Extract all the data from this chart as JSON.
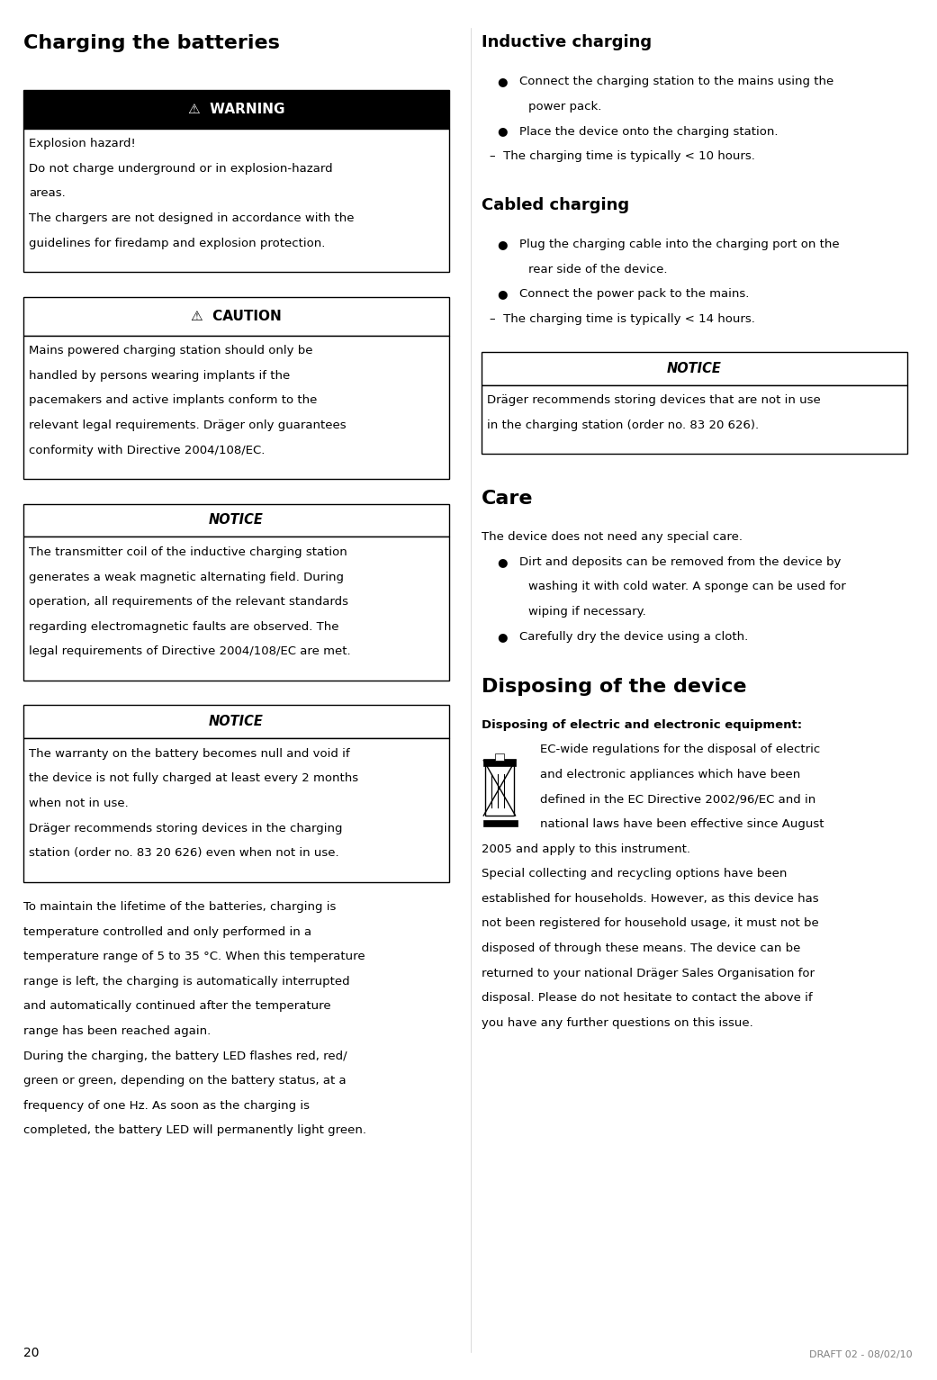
{
  "page_number": "20",
  "bg_color": "#ffffff",
  "sections": {
    "left_title": "Charging the batteries",
    "right_top_title": "Inductive charging",
    "right_cabled_title": "Cabled charging",
    "care_title": "Care",
    "disposing_title": "Disposing of the device",
    "disposing_subtitle": "Disposing of electric and electronic equipment:"
  },
  "warning_box": {
    "header": "⚠  WARNING",
    "body_lines": [
      "Explosion hazard!",
      "Do not charge underground or in explosion-hazard",
      "areas.",
      "The chargers are not designed in accordance with the",
      "guidelines for firedamp and explosion protection."
    ]
  },
  "caution_box": {
    "header": "⚠  CAUTION",
    "body_lines": [
      "Mains powered charging station should only be",
      "handled by persons wearing implants if the",
      "pacemakers and active implants conform to the",
      "relevant legal requirements. Dräger only guarantees",
      "conformity with Directive 2004/108/EC."
    ]
  },
  "notice1_box": {
    "header": "NOTICE",
    "body_lines": [
      "The transmitter coil of the inductive charging station",
      "generates a weak magnetic alternating field. During",
      "operation, all requirements of the relevant standards",
      "regarding electromagnetic faults are observed. The",
      "legal requirements of Directive 2004/108/EC are met."
    ]
  },
  "notice2_box": {
    "header": "NOTICE",
    "body_lines": [
      "The warranty on the battery becomes null and void if",
      "the device is not fully charged at least every 2 months",
      "when not in use.",
      "Dräger recommends storing devices in the charging",
      "station (order no. 83 20 626) even when not in use."
    ]
  },
  "main_body_left": [
    "To maintain the lifetime of the batteries, charging is",
    "temperature controlled and only performed in a",
    "temperature range of 5 to 35 °C. When this temperature",
    "range is left, the charging is automatically interrupted",
    "and automatically continued after the temperature",
    "range has been reached again.",
    "During the charging, the battery LED flashes red, red/",
    "green or green, depending on the battery status, at a",
    "frequency of one Hz. As soon as the charging is",
    "completed, the battery LED will permanently light green."
  ],
  "inductive_bullet1_lines": [
    "Connect the charging station to the mains using the",
    "power pack."
  ],
  "inductive_bullet2_lines": [
    "Place the device onto the charging station."
  ],
  "inductive_dash": "–  The charging time is typically < 10 hours.",
  "cabled_bullet1_lines": [
    "Plug the charging cable into the charging port on the",
    "rear side of the device."
  ],
  "cabled_bullet2_lines": [
    "Connect the power pack to the mains."
  ],
  "cabled_dash": "–  The charging time is typically < 14 hours.",
  "notice_right_box": {
    "header": "NOTICE",
    "body_lines": [
      "Dräger recommends storing devices that are not in use",
      "in the charging station (order no. 83 20 626)."
    ]
  },
  "care_body_line1": "The device does not need any special care.",
  "care_bullet1_lines": [
    "Dirt and deposits can be removed from the device by",
    "washing it with cold water. A sponge can be used for",
    "wiping if necessary."
  ],
  "care_bullet2_lines": [
    "Carefully dry the device using a cloth."
  ],
  "disposing_body_indented": [
    "EC-wide regulations for the disposal of electric",
    "and electronic appliances which have been",
    "defined in the EC Directive 2002/96/EC and in",
    "national laws have been effective since August"
  ],
  "disposing_body_full": [
    "2005 and apply to this instrument.",
    "Special collecting and recycling options have been",
    "established for households. However, as this device has",
    "not been registered for household usage, it must not be",
    "disposed of through these means. The device can be",
    "returned to your national Dräger Sales Organisation for",
    "disposal. Please do not hesitate to contact the above if",
    "you have any further questions on this issue."
  ],
  "footer_text": "DRAFT 02 - 08/02/10",
  "font_size_title_main": 16,
  "font_size_section": 13,
  "font_size_body": 9.5
}
